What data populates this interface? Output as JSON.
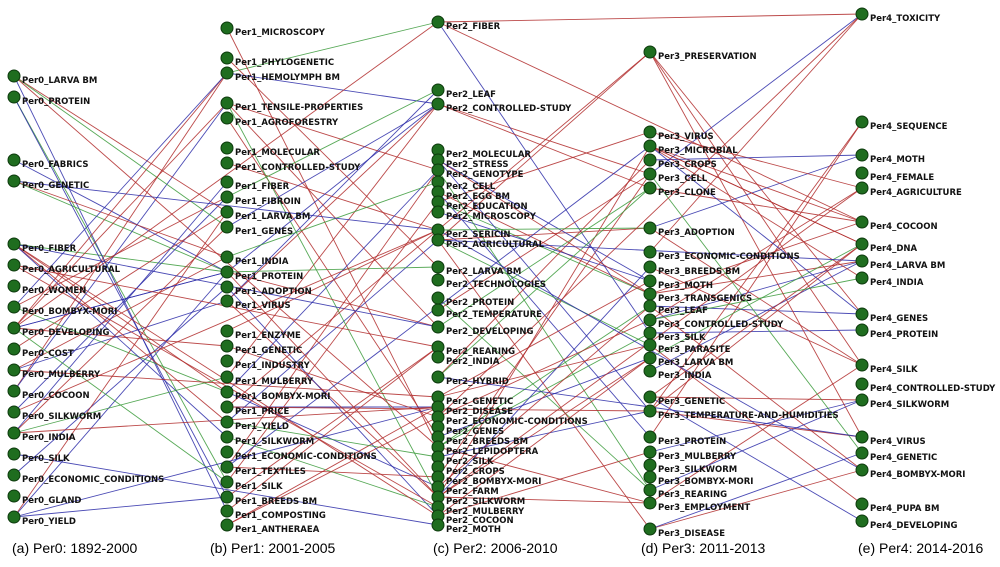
{
  "colors": {
    "node_fill": "#1f6d1f",
    "edge_red": "#b02a2a",
    "edge_blue": "#2b2ba8",
    "edge_green": "#3a9a3a"
  },
  "captions": [
    "(a) Per0: 1892-2000",
    "(b) Per1: 2001-2005",
    "(c) Per2: 2006-2010",
    "(d) Per3: 2011-2013",
    "(e) Per4: 2014-2016"
  ],
  "columns": [
    {
      "id": "per0",
      "nodes": [
        "Per0_LARVA BM",
        "Per0_PROTEIN",
        "Per0_FABRICS",
        "Per0_GENETIC",
        "Per0_FIBER",
        "Per0_AGRICULTURAL",
        "Per0_WOMEN",
        "Per0_BOMBYX-MORI",
        "Per0_DEVELOPING",
        "Per0_COST",
        "Per0_MULBERRY",
        "Per0_COCOON",
        "Per0_SILKWORM",
        "Per0_INDIA",
        "Per0_SILK",
        "Per0_ECONOMIC_CONDITIONS",
        "Per0_GLAND",
        "Per0_YIELD"
      ]
    },
    {
      "id": "per1",
      "nodes": [
        "Per1_MICROSCOPY",
        "Per1_PHYLOGENETIC",
        "Per1_HEMOLYMPH BM",
        "Per1_TENSILE-PROPERTIES",
        "Per1_AGROFORESTRY",
        "Per1_MOLECULAR",
        "Per1_CONTROLLED-STUDY",
        "Per1_FIBER",
        "Per1_FIBROIN",
        "Per1_LARVA BM",
        "Per1_GENES",
        "Per1_INDIA",
        "Per1_PROTEIN",
        "Per1_ADOPTION",
        "Per1_VIRUS",
        "Per1_ENZYME",
        "Per1_GENETIC",
        "Per1_INDUSTRY",
        "Per1_MULBERRY",
        "Per1_BOMBYX-MORI",
        "Per1_PRICE",
        "Per1_YIELD",
        "Per1_SILKWORM",
        "Per1_ECONOMIC-CONDITIONS",
        "Per1_TEXTILES",
        "Per1_SILK",
        "Per1_BREEDS BM",
        "Per1_COMPOSTING",
        "Per1_ANTHERAEA"
      ]
    },
    {
      "id": "per2",
      "nodes": [
        "Per2_FIBER",
        "Per2_LEAF",
        "Per2_CONTROLLED-STUDY",
        "Per2_MOLECULAR",
        "Per2_STRESS",
        "Per2_GENOTYPE",
        "Per2_CELL",
        "Per2_EGG BM",
        "Per2_EDUCATION",
        "Per2_MICROSCOPY",
        "Per2_SERICIN",
        "Per2_AGRICULTURAL",
        "Per2_LARVA BM",
        "Per2_TECHNOLOGIES",
        "Per2_PROTEIN",
        "Per2_TEMPERATURE",
        "Per2_DEVELOPING",
        "Per2_REARING",
        "Per2_INDIA",
        "Per2_HYBRID",
        "Per2_GENETIC",
        "Per2_DISEASE",
        "Per2_ECONOMIC-CONDITIONS",
        "Per2_GENES",
        "Per2_BREEDS BM",
        "Per2_LEPIDOPTERA",
        "Per2_SILK",
        "Per2_CROPS",
        "Per2_BOMBYX-MORI",
        "Per2_FARM",
        "Per2_SILKWORM",
        "Per2_MULBERRY",
        "Per2_COCOON",
        "Per2_MOTH"
      ]
    },
    {
      "id": "per3",
      "nodes": [
        "Per3_PRESERVATION",
        "Per3_VIRUS",
        "Per3_MICROBIAL",
        "Per3_CROPS",
        "Per3_CELL",
        "Per3_CLONE",
        "Per3_ADOPTION",
        "Per3_ECONOMIC-CONDITIONS",
        "Per3_BREEDS BM",
        "Per3_MOTH",
        "Per3_TRANSGENICS",
        "Per3_LEAF",
        "Per3_CONTROLLED-STUDY",
        "Per3_SILK",
        "Per3_PARASITE",
        "Per3_LARVA BM",
        "Per3_INDIA",
        "Per3_GENETIC",
        "Per3_TEMPERATURE-AND-HUMIDITIES",
        "Per3_PROTEIN",
        "Per3_MULBERRY",
        "Per3_SILKWORM",
        "Per3_BOMBYX-MORI",
        "Per3_REARING",
        "Per3_EMPLOYMENT",
        "Per3_DISEASE"
      ]
    },
    {
      "id": "per4",
      "nodes": [
        "Per4_TOXICITY",
        "Per4_SEQUENCE",
        "Per4_MOTH",
        "Per4_FEMALE",
        "Per4_AGRICULTURE",
        "Per4_COCOON",
        "Per4_DNA",
        "Per4_LARVA BM",
        "Per4_INDIA",
        "Per4_GENES",
        "Per4_PROTEIN",
        "Per4_SILK",
        "Per4_CONTROLLED-STUDY",
        "Per4_SILKWORM",
        "Per4_VIRUS",
        "Per4_GENETIC",
        "Per4_BOMBYX-MORI",
        "Per4_PUPA BM",
        "Per4_DEVELOPING"
      ]
    }
  ]
}
